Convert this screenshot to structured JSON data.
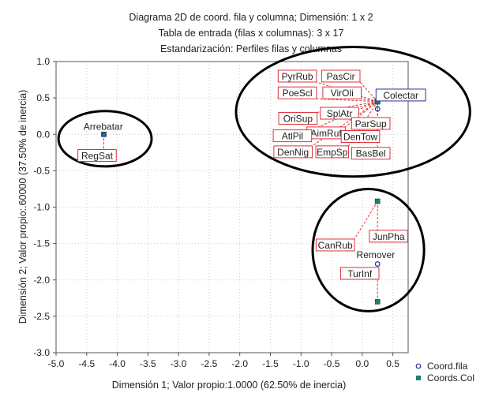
{
  "chart_data": {
    "type": "scatter",
    "title_lines": [
      "Diagrama 2D de coord. fila y columna; Dimensión:      1  x  2",
      "Tabla de entrada (filas x columnas): 3 x 17",
      "Estandarización: Perfiles filas y columnas"
    ],
    "xlabel": "Dimensión 1; Valor propio:1.0000 (62.50% de inercia)",
    "ylabel": "Dimensión 2; Valor propio:.60000 (37.50% de inercia)",
    "xlim": [
      -5.0,
      0.75
    ],
    "ylim": [
      -3.0,
      1.0
    ],
    "x_ticks": [
      "-5.0",
      "-4.5",
      "-4.0",
      "-3.5",
      "-3.0",
      "-2.5",
      "-2.0",
      "-1.5",
      "-1.0",
      "-0.5",
      "0.0",
      "0.5"
    ],
    "y_ticks": [
      "1.0",
      "0.5",
      "0.0",
      "-0.5",
      "-1.0",
      "-1.5",
      "-2.0",
      "-2.5",
      "-3.0"
    ],
    "grid": true,
    "legend_position": "bottom-right",
    "legend": [
      {
        "label": "Coord.fila",
        "marker": "open-circle",
        "color": "#2a2f9a"
      },
      {
        "label": "Coords.Col",
        "marker": "filled-square",
        "color": "#1f7f6e"
      }
    ],
    "colors": {
      "row": "#2a2f9a",
      "col": "#1f7f6e",
      "label_box": "#e0303a",
      "connector": "#e0303a",
      "ellipse": "#000000"
    },
    "row_points": [
      {
        "label": "Arrebatar",
        "x": -4.22,
        "y": 0.0
      },
      {
        "label": "Colectar",
        "x": 0.25,
        "y": 0.35
      },
      {
        "label": "Remover",
        "x": 0.25,
        "y": -1.78
      }
    ],
    "col_points": [
      {
        "label": "RegSat",
        "x": -4.22,
        "y": 0.0
      },
      {
        "label": "PyrRub",
        "x": 0.25,
        "y": 0.45
      },
      {
        "label": "PasCir",
        "x": 0.25,
        "y": 0.45
      },
      {
        "label": "PoeScl",
        "x": 0.25,
        "y": 0.45
      },
      {
        "label": "VirOli",
        "x": 0.25,
        "y": 0.45
      },
      {
        "label": "SplAtr",
        "x": 0.25,
        "y": 0.45
      },
      {
        "label": "OriSup",
        "x": 0.25,
        "y": 0.45
      },
      {
        "label": "ParSup",
        "x": 0.25,
        "y": 0.45
      },
      {
        "label": "AimRuf",
        "x": 0.25,
        "y": 0.45
      },
      {
        "label": "AtlPil",
        "x": 0.25,
        "y": 0.45
      },
      {
        "label": "DenTow",
        "x": 0.25,
        "y": 0.45
      },
      {
        "label": "DenNig",
        "x": 0.25,
        "y": 0.45
      },
      {
        "label": "EmpSp",
        "x": 0.25,
        "y": 0.45
      },
      {
        "label": "BasBel",
        "x": 0.25,
        "y": 0.45
      },
      {
        "label": "CanRub",
        "x": 0.25,
        "y": -0.92
      },
      {
        "label": "JunPha",
        "x": 0.25,
        "y": -0.92
      },
      {
        "label": "TurInf",
        "x": 0.25,
        "y": -2.3
      }
    ],
    "label_positions": [
      {
        "label": "Arrebatar",
        "x": -4.23,
        "y": 0.11,
        "boxed": false,
        "anchor_group": "row",
        "anchor": 0
      },
      {
        "label": "RegSat",
        "x": -4.33,
        "y": -0.29,
        "boxed": true,
        "anchor_group": "col",
        "anchor": 0
      },
      {
        "label": "PyrRub",
        "x": -1.06,
        "y": 0.8,
        "boxed": true,
        "anchor_group": "col",
        "anchor": 1
      },
      {
        "label": "PasCir",
        "x": -0.35,
        "y": 0.8,
        "boxed": true,
        "anchor_group": "col",
        "anchor": 2
      },
      {
        "label": "PoeScl",
        "x": -1.06,
        "y": 0.57,
        "boxed": true,
        "anchor_group": "col",
        "anchor": 3
      },
      {
        "label": "VirOli",
        "x": -0.33,
        "y": 0.57,
        "boxed": true,
        "anchor_group": "col",
        "anchor": 4
      },
      {
        "label": "Colectar",
        "x": 0.63,
        "y": 0.54,
        "boxed": true,
        "box_color": "#2a2f9a",
        "anchor_group": "row",
        "anchor": 1
      },
      {
        "label": "SplAtr",
        "x": -0.37,
        "y": 0.29,
        "boxed": true,
        "anchor_group": "col",
        "anchor": 5
      },
      {
        "label": "OriSup",
        "x": -1.05,
        "y": 0.22,
        "boxed": true,
        "anchor_group": "col",
        "anchor": 6
      },
      {
        "label": "ParSup",
        "x": 0.14,
        "y": 0.15,
        "boxed": true,
        "anchor_group": "col",
        "anchor": 7
      },
      {
        "label": "AimRuf",
        "x": -0.59,
        "y": 0.02,
        "boxed": true,
        "anchor_group": "col",
        "anchor": 8
      },
      {
        "label": "AtlPil",
        "x": -1.14,
        "y": -0.02,
        "boxed": true,
        "anchor_group": "col",
        "anchor": 9
      },
      {
        "label": "DenTow",
        "x": -0.03,
        "y": -0.03,
        "boxed": true,
        "anchor_group": "col",
        "anchor": 10
      },
      {
        "label": "DenNig",
        "x": -1.13,
        "y": -0.24,
        "boxed": true,
        "anchor_group": "col",
        "anchor": 11
      },
      {
        "label": "EmpSp",
        "x": -0.49,
        "y": -0.24,
        "boxed": true,
        "anchor_group": "col",
        "anchor": 12
      },
      {
        "label": "BasBel",
        "x": 0.14,
        "y": -0.26,
        "boxed": true,
        "anchor_group": "col",
        "anchor": 13
      },
      {
        "label": "JunPha",
        "x": 0.43,
        "y": -1.4,
        "boxed": true,
        "anchor_group": "col",
        "anchor": 15
      },
      {
        "label": "CanRub",
        "x": -0.44,
        "y": -1.52,
        "boxed": true,
        "anchor_group": "col",
        "anchor": 14
      },
      {
        "label": "Remover",
        "x": 0.22,
        "y": -1.65,
        "boxed": false,
        "anchor_group": "row",
        "anchor": 2
      },
      {
        "label": "TurInf",
        "x": -0.04,
        "y": -1.91,
        "boxed": true,
        "anchor_group": "col",
        "anchor": 16
      }
    ],
    "clusters": [
      {
        "cx": -4.2,
        "cy": -0.06,
        "rx": 0.76,
        "ry": 0.38
      },
      {
        "cx": -0.15,
        "cy": 0.31,
        "rx": 1.91,
        "ry": 0.89
      },
      {
        "cx": 0.1,
        "cy": -1.59,
        "rx": 0.91,
        "ry": 0.84
      }
    ]
  }
}
